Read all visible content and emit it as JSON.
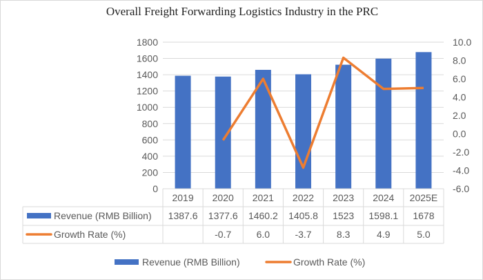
{
  "chart_data": {
    "type": "bar",
    "title": "Overall Freight Forwarding Logistics Industry  in the PRC",
    "categories": [
      "2019",
      "2020",
      "2021",
      "2022",
      "2023",
      "2024",
      "2025E"
    ],
    "series": [
      {
        "name": "Revenue (RMB Billion)",
        "type": "bar",
        "axis": "left",
        "color": "#4472C4",
        "values": [
          1387.6,
          1377.6,
          1460.2,
          1405.8,
          1523,
          1598.1,
          1678
        ],
        "labels": [
          "1387.6",
          "1377.6",
          "1460.2",
          "1405.8",
          "1523",
          "1598.1",
          "1678"
        ]
      },
      {
        "name": "Growth Rate (%)",
        "type": "line",
        "axis": "right",
        "color": "#ED7D31",
        "values": [
          null,
          -0.7,
          6.0,
          -3.7,
          8.3,
          4.9,
          5.0
        ],
        "labels": [
          "",
          "-0.7",
          "6.0",
          "-3.7",
          "8.3",
          "4.9",
          "5.0"
        ]
      }
    ],
    "left_axis": {
      "range": [
        0,
        1800
      ],
      "ticks": [
        "0",
        "200",
        "400",
        "600",
        "800",
        "1000",
        "1200",
        "1400",
        "1600",
        "1800"
      ]
    },
    "right_axis": {
      "range": [
        -6,
        10
      ],
      "ticks": [
        "-6.0",
        "-4.0",
        "-2.0",
        "0.0",
        "2.0",
        "4.0",
        "6.0",
        "8.0",
        "10.0"
      ]
    },
    "grid": true,
    "legend": "bottom",
    "data_table": true
  }
}
